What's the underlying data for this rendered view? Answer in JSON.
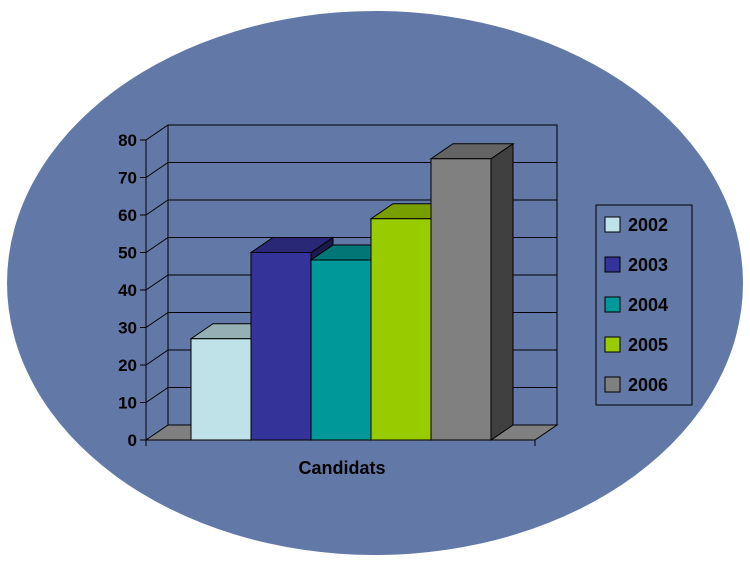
{
  "chart_data": {
    "type": "bar",
    "categories": [
      "Candidats"
    ],
    "xlabel": "Candidats",
    "ylabel": "",
    "ylim": [
      0,
      80
    ],
    "yticks": [
      0,
      10,
      20,
      30,
      40,
      50,
      60,
      70,
      80
    ],
    "series": [
      {
        "name": "2002",
        "values": [
          27
        ],
        "color": "#bfe2e8"
      },
      {
        "name": "2003",
        "values": [
          50
        ],
        "color": "#333399"
      },
      {
        "name": "2004",
        "values": [
          48
        ],
        "color": "#009999"
      },
      {
        "name": "2005",
        "values": [
          59
        ],
        "color": "#99cc00"
      },
      {
        "name": "2006",
        "values": [
          75
        ],
        "color": "#808080"
      }
    ],
    "legend_position": "right",
    "grid": true,
    "background_shape": "ellipse",
    "background_color": "#6279a8",
    "style": "3d"
  }
}
